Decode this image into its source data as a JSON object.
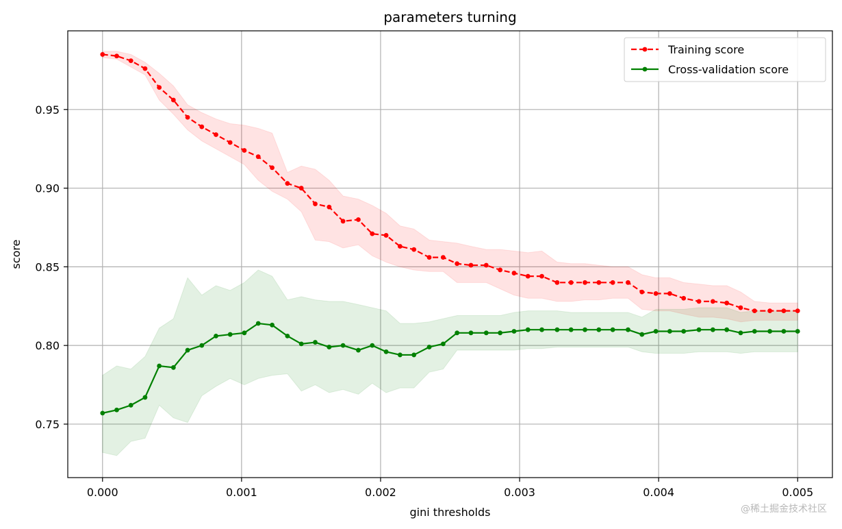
{
  "chart_data": {
    "type": "line",
    "title": "parameters turning",
    "xlabel": "gini thresholds",
    "ylabel": "score",
    "xlim": [
      -0.00025,
      0.00525
    ],
    "ylim": [
      0.716,
      1.0
    ],
    "xticks": [
      0.0,
      0.001,
      0.002,
      0.003,
      0.004,
      0.005
    ],
    "xtick_labels": [
      "0.000",
      "0.001",
      "0.002",
      "0.003",
      "0.004",
      "0.005"
    ],
    "yticks": [
      0.75,
      0.8,
      0.85,
      0.9,
      0.95
    ],
    "ytick_labels": [
      "0.75",
      "0.80",
      "0.85",
      "0.90",
      "0.95"
    ],
    "grid": true,
    "legend_position": "top-right",
    "x": [
      0.0,
      0.000102,
      0.000204,
      0.000306,
      0.000408,
      0.00051,
      0.000612,
      0.000714,
      0.000816,
      0.000918,
      0.00102,
      0.00112,
      0.00122,
      0.00133,
      0.00143,
      0.00153,
      0.00163,
      0.00173,
      0.00184,
      0.00194,
      0.00204,
      0.00214,
      0.00224,
      0.00235,
      0.00245,
      0.00255,
      0.00265,
      0.00276,
      0.00286,
      0.00296,
      0.00306,
      0.00316,
      0.00327,
      0.00337,
      0.00347,
      0.00357,
      0.00367,
      0.00378,
      0.00388,
      0.00398,
      0.00408,
      0.00418,
      0.00429,
      0.00439,
      0.00449,
      0.00459,
      0.00469,
      0.0048,
      0.0049,
      0.005
    ],
    "series": [
      {
        "name": "Training score",
        "color": "#ff0000",
        "linestyle": "dashed",
        "marker": "dot",
        "values": [
          0.985,
          0.984,
          0.981,
          0.976,
          0.964,
          0.956,
          0.945,
          0.939,
          0.934,
          0.929,
          0.924,
          0.92,
          0.913,
          0.903,
          0.9,
          0.89,
          0.888,
          0.879,
          0.88,
          0.871,
          0.87,
          0.863,
          0.861,
          0.856,
          0.856,
          0.852,
          0.851,
          0.851,
          0.848,
          0.846,
          0.844,
          0.844,
          0.84,
          0.84,
          0.84,
          0.84,
          0.84,
          0.84,
          0.834,
          0.833,
          0.833,
          0.83,
          0.828,
          0.828,
          0.827,
          0.824,
          0.822,
          0.822,
          0.822,
          0.822
        ],
        "band_upper": [
          0.987,
          0.987,
          0.985,
          0.98,
          0.973,
          0.965,
          0.953,
          0.948,
          0.944,
          0.941,
          0.94,
          0.938,
          0.935,
          0.91,
          0.914,
          0.912,
          0.905,
          0.895,
          0.893,
          0.889,
          0.884,
          0.876,
          0.874,
          0.867,
          0.866,
          0.865,
          0.863,
          0.861,
          0.861,
          0.86,
          0.859,
          0.86,
          0.853,
          0.852,
          0.852,
          0.851,
          0.85,
          0.85,
          0.845,
          0.843,
          0.843,
          0.84,
          0.839,
          0.838,
          0.838,
          0.834,
          0.828,
          0.827,
          0.827,
          0.827
        ],
        "band_lower": [
          0.983,
          0.982,
          0.977,
          0.972,
          0.956,
          0.947,
          0.937,
          0.93,
          0.925,
          0.92,
          0.915,
          0.905,
          0.898,
          0.893,
          0.885,
          0.867,
          0.866,
          0.862,
          0.864,
          0.857,
          0.853,
          0.85,
          0.848,
          0.847,
          0.847,
          0.84,
          0.84,
          0.84,
          0.836,
          0.832,
          0.83,
          0.83,
          0.828,
          0.828,
          0.829,
          0.829,
          0.83,
          0.83,
          0.823,
          0.822,
          0.822,
          0.82,
          0.818,
          0.818,
          0.817,
          0.815,
          0.816,
          0.816,
          0.816,
          0.816
        ]
      },
      {
        "name": "Cross-validation score",
        "color": "#008000",
        "linestyle": "solid",
        "marker": "dot",
        "values": [
          0.757,
          0.759,
          0.762,
          0.767,
          0.787,
          0.786,
          0.797,
          0.8,
          0.806,
          0.807,
          0.808,
          0.814,
          0.813,
          0.806,
          0.801,
          0.802,
          0.799,
          0.8,
          0.797,
          0.8,
          0.796,
          0.794,
          0.794,
          0.799,
          0.801,
          0.808,
          0.808,
          0.808,
          0.808,
          0.809,
          0.81,
          0.81,
          0.81,
          0.81,
          0.81,
          0.81,
          0.81,
          0.81,
          0.807,
          0.809,
          0.809,
          0.809,
          0.81,
          0.81,
          0.81,
          0.808,
          0.809,
          0.809,
          0.809,
          0.809
        ],
        "band_upper": [
          0.781,
          0.787,
          0.785,
          0.793,
          0.811,
          0.817,
          0.843,
          0.832,
          0.838,
          0.835,
          0.84,
          0.848,
          0.844,
          0.829,
          0.831,
          0.829,
          0.828,
          0.828,
          0.826,
          0.824,
          0.822,
          0.814,
          0.814,
          0.815,
          0.817,
          0.819,
          0.819,
          0.819,
          0.819,
          0.821,
          0.822,
          0.822,
          0.822,
          0.821,
          0.821,
          0.821,
          0.821,
          0.821,
          0.818,
          0.823,
          0.823,
          0.823,
          0.824,
          0.824,
          0.824,
          0.821,
          0.822,
          0.822,
          0.822,
          0.822
        ],
        "band_lower": [
          0.732,
          0.73,
          0.739,
          0.741,
          0.762,
          0.754,
          0.751,
          0.768,
          0.774,
          0.779,
          0.775,
          0.779,
          0.781,
          0.782,
          0.771,
          0.775,
          0.77,
          0.772,
          0.769,
          0.776,
          0.77,
          0.773,
          0.773,
          0.783,
          0.785,
          0.797,
          0.797,
          0.797,
          0.797,
          0.797,
          0.798,
          0.798,
          0.799,
          0.799,
          0.799,
          0.799,
          0.799,
          0.799,
          0.796,
          0.795,
          0.795,
          0.795,
          0.796,
          0.796,
          0.796,
          0.795,
          0.796,
          0.796,
          0.796,
          0.796
        ]
      }
    ]
  },
  "watermark": "@稀土掘金技术社区"
}
